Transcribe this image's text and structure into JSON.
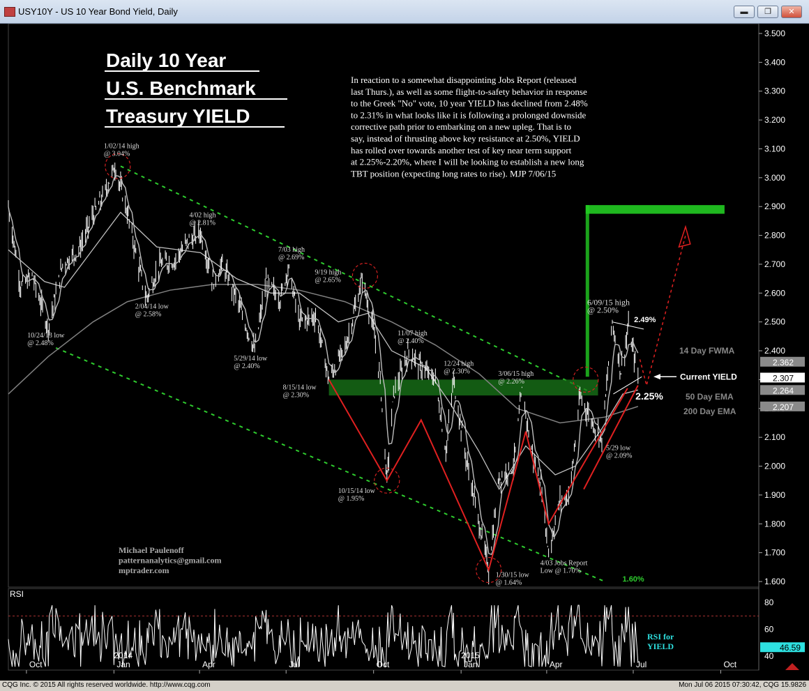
{
  "window": {
    "title": "USY10Y - US 10 Year Bond Yield, Daily",
    "minimize_label": "▬",
    "restore_label": "❐",
    "close_label": "✕",
    "app_icon": "chart-app-icon"
  },
  "status": {
    "copyright": "CQG Inc. © 2015 All rights reserved worldwide. http://www.cqg.com",
    "timestamp": "Mon Jul 06 2015 07:30:42, CQG 15.9826"
  },
  "colors": {
    "background": "#000000",
    "price": "#ffffff",
    "ema50": "#c0c0c0",
    "ema200": "#808080",
    "channel": "#2ecc2e",
    "trend": "#e02020",
    "highlight_circle": "#d02020",
    "target_box": "#22cc22",
    "axis_text": "#ffffff"
  },
  "chart_data": {
    "type": "line",
    "title_lines": [
      "Daily 10 Year",
      "U.S. Benchmark",
      "Treasury YIELD"
    ],
    "commentary": [
      "In reaction to a somewhat disappointing Jobs Report (released",
      "last Thurs.), as well as some flight-to-safety behavior in response",
      "to the Greek \"No\" vote, 10 year YIELD has declined from 2.48%",
      "to 2.31% in what looks like it is following a prolonged downside",
      "corrective path prior to embarking on a new upleg. That is to",
      "say, instead of thrusting above key resistance at 2.50%, YIELD",
      "has rolled over towards another test of key near term support",
      "at 2.25%-2.20%, where I will be looking to establish a new long",
      "TBT position (expecting long rates to rise).  MJP 7/06/15"
    ],
    "author": [
      "Michael Paulenoff",
      "patternanalytics@gmail.com",
      "mptrader.com"
    ],
    "ylim": [
      1.6,
      3.5
    ],
    "yticks": [
      "3.500",
      "3.400",
      "3.300",
      "3.200",
      "3.100",
      "3.000",
      "2.900",
      "2.800",
      "2.700",
      "2.600",
      "2.500",
      "2.400",
      "2.300",
      "2.200",
      "2.100",
      "2.000",
      "1.900",
      "1.800",
      "1.700",
      "1.600"
    ],
    "xtick_labels": [
      "Oct",
      "Jan",
      "Apr",
      "Jul",
      "Oct",
      "Jan",
      "Apr",
      "Jul",
      "Oct"
    ],
    "xtick_dates": [
      "2013-10-01",
      "2014-01-01",
      "2014-04-01",
      "2014-07-01",
      "2014-10-01",
      "2015-01-01",
      "2015-04-01",
      "2015-07-01",
      "2015-10-01"
    ],
    "year_labels": [
      {
        "text": "2014",
        "date": "2014-01-01"
      },
      {
        "text": "2015",
        "date": "2015-01-01"
      }
    ],
    "x_range": [
      "2013-09-12",
      "2015-11-10"
    ],
    "price_keypoints": [
      [
        "2013-09-12",
        2.9
      ],
      [
        "2013-09-25",
        2.62
      ],
      [
        "2013-10-07",
        2.66
      ],
      [
        "2013-10-24",
        2.48
      ],
      [
        "2013-11-08",
        2.7
      ],
      [
        "2013-11-25",
        2.75
      ],
      [
        "2013-12-10",
        2.87
      ],
      [
        "2013-12-20",
        2.93
      ],
      [
        "2014-01-02",
        3.04
      ],
      [
        "2014-01-15",
        2.88
      ],
      [
        "2014-01-25",
        2.72
      ],
      [
        "2014-02-04",
        2.58
      ],
      [
        "2014-02-18",
        2.7
      ],
      [
        "2014-03-05",
        2.71
      ],
      [
        "2014-03-20",
        2.78
      ],
      [
        "2014-04-02",
        2.81
      ],
      [
        "2014-04-15",
        2.64
      ],
      [
        "2014-04-25",
        2.7
      ],
      [
        "2014-05-10",
        2.58
      ],
      [
        "2014-05-29",
        2.4
      ],
      [
        "2014-06-10",
        2.64
      ],
      [
        "2014-06-25",
        2.58
      ],
      [
        "2014-07-03",
        2.69
      ],
      [
        "2014-07-15",
        2.5
      ],
      [
        "2014-08-01",
        2.52
      ],
      [
        "2014-08-15",
        2.3
      ],
      [
        "2014-09-02",
        2.42
      ],
      [
        "2014-09-19",
        2.65
      ],
      [
        "2014-09-30",
        2.49
      ],
      [
        "2014-10-08",
        2.3
      ],
      [
        "2014-10-15",
        1.95
      ],
      [
        "2014-10-22",
        2.25
      ],
      [
        "2014-11-07",
        2.4
      ],
      [
        "2014-11-20",
        2.34
      ],
      [
        "2014-12-05",
        2.3
      ],
      [
        "2014-12-16",
        2.05
      ],
      [
        "2014-12-24",
        2.3
      ],
      [
        "2015-01-05",
        2.05
      ],
      [
        "2015-01-20",
        1.8
      ],
      [
        "2015-01-30",
        1.64
      ],
      [
        "2015-02-10",
        1.96
      ],
      [
        "2015-02-25",
        2.0
      ],
      [
        "2015-03-06",
        2.26
      ],
      [
        "2015-03-18",
        2.02
      ],
      [
        "2015-03-26",
        1.94
      ],
      [
        "2015-04-03",
        1.7
      ],
      [
        "2015-04-15",
        1.88
      ],
      [
        "2015-04-25",
        1.9
      ],
      [
        "2015-05-06",
        2.24
      ],
      [
        "2015-05-15",
        2.18
      ],
      [
        "2015-05-29",
        2.09
      ],
      [
        "2015-06-09",
        2.5
      ],
      [
        "2015-06-18",
        2.33
      ],
      [
        "2015-06-26",
        2.48
      ],
      [
        "2015-07-06",
        2.31
      ]
    ],
    "ema50_keypoints": [
      [
        "2013-09-12",
        2.75
      ],
      [
        "2013-10-20",
        2.64
      ],
      [
        "2013-11-10",
        2.62
      ],
      [
        "2013-12-05",
        2.73
      ],
      [
        "2014-01-08",
        2.88
      ],
      [
        "2014-02-15",
        2.76
      ],
      [
        "2014-04-02",
        2.74
      ],
      [
        "2014-05-10",
        2.65
      ],
      [
        "2014-06-15",
        2.6
      ],
      [
        "2014-07-15",
        2.6
      ],
      [
        "2014-08-25",
        2.5
      ],
      [
        "2014-09-25",
        2.53
      ],
      [
        "2014-10-20",
        2.4
      ],
      [
        "2014-11-25",
        2.34
      ],
      [
        "2014-12-20",
        2.22
      ],
      [
        "2015-01-20",
        2.05
      ],
      [
        "2015-02-10",
        1.92
      ],
      [
        "2015-03-10",
        2.07
      ],
      [
        "2015-04-10",
        1.97
      ],
      [
        "2015-05-01",
        2.0
      ],
      [
        "2015-05-29",
        2.13
      ],
      [
        "2015-06-20",
        2.25
      ],
      [
        "2015-07-06",
        2.264
      ]
    ],
    "ema200_keypoints": [
      [
        "2013-09-12",
        2.25
      ],
      [
        "2013-10-24",
        2.38
      ],
      [
        "2013-12-10",
        2.5
      ],
      [
        "2014-01-15",
        2.57
      ],
      [
        "2014-03-01",
        2.61
      ],
      [
        "2014-04-15",
        2.63
      ],
      [
        "2014-06-01",
        2.63
      ],
      [
        "2014-07-15",
        2.61
      ],
      [
        "2014-09-01",
        2.57
      ],
      [
        "2014-10-20",
        2.5
      ],
      [
        "2014-12-05",
        2.42
      ],
      [
        "2015-01-20",
        2.32
      ],
      [
        "2015-03-01",
        2.2
      ],
      [
        "2015-04-15",
        2.15
      ],
      [
        "2015-06-01",
        2.17
      ],
      [
        "2015-07-06",
        2.207
      ]
    ],
    "price_tags": [
      {
        "value": "2.362",
        "v": 2.362
      },
      {
        "value": "2.307",
        "v": 2.307
      },
      {
        "value": "2.264",
        "v": 2.264
      },
      {
        "value": "2.207",
        "v": 2.207
      }
    ],
    "indicator_labels": [
      {
        "text": "14 Day FWMA",
        "v": 2.4
      },
      {
        "text": "Current YIELD",
        "v": 2.31
      },
      {
        "text": "50 Day EMA",
        "v": 2.24
      },
      {
        "text": "200 Day EMA",
        "v": 2.19
      }
    ],
    "annotations": [
      {
        "lines": [
          "1/02/14 high",
          "@ 3.04%"
        ],
        "date": "2014-01-05",
        "v": 3.04
      },
      {
        "lines": [
          "4/02 high",
          "@ 2.81%"
        ],
        "date": "2014-04-02",
        "v": 2.81
      },
      {
        "lines": [
          "7/03 high",
          "@ 2.69%"
        ],
        "date": "2014-07-03",
        "v": 2.69
      },
      {
        "lines": [
          "9/19 high",
          "@ 2.65%"
        ],
        "date": "2014-09-19",
        "v": 2.65
      },
      {
        "lines": [
          "11/07 high",
          "@ 2.40%"
        ],
        "date": "2014-11-07",
        "v": 2.4
      },
      {
        "lines": [
          "12/24 high",
          "@ 2.30%"
        ],
        "date": "2014-12-24",
        "v": 2.3
      },
      {
        "lines": [
          "3/06/15 high",
          "@ 2.26%"
        ],
        "date": "2015-03-06",
        "v": 2.26
      },
      {
        "lines": [
          "6/09/15 high",
          "@ 2.50%"
        ],
        "date": "2015-06-09",
        "v": 2.5
      },
      {
        "lines": [
          "2/04/14 low",
          "@ 2.58%"
        ],
        "date": "2014-02-04",
        "v": 2.58
      },
      {
        "lines": [
          "10/24/13 low",
          "@ 2.48%"
        ],
        "date": "2013-10-24",
        "v": 2.48
      },
      {
        "lines": [
          "5/29/14 low",
          "@ 2.40%"
        ],
        "date": "2014-05-29",
        "v": 2.4
      },
      {
        "lines": [
          "8/15/14 low",
          "@ 2.30%"
        ],
        "date": "2014-08-15",
        "v": 2.3
      },
      {
        "lines": [
          "10/15/14 low",
          "@ 1.95%"
        ],
        "date": "2014-10-15",
        "v": 1.95
      },
      {
        "lines": [
          "4/03 Jobs Report",
          "Low @ 1.70%"
        ],
        "date": "2015-04-03",
        "v": 1.7
      },
      {
        "lines": [
          "1/30/15 low",
          "@ 1.64%"
        ],
        "date": "2015-01-30",
        "v": 1.64
      },
      {
        "lines": [
          "5/29 low",
          "@ 2.09%"
        ],
        "date": "2015-05-29",
        "v": 2.09
      }
    ],
    "level_labels": [
      {
        "text": "2.49%",
        "date": "2015-06-26",
        "v": 2.49
      },
      {
        "text": "2.25%",
        "date": "2015-06-26",
        "v": 2.25
      },
      {
        "text": "1.60%",
        "date": "2015-06-05",
        "v": 1.6
      }
    ],
    "rsi": {
      "label": "RSI",
      "title": [
        "RSI for",
        "YIELD"
      ],
      "ylim": [
        30,
        90
      ],
      "yticks": [
        "80",
        "60",
        "40"
      ],
      "current": "46.59",
      "overbought": 70
    }
  }
}
